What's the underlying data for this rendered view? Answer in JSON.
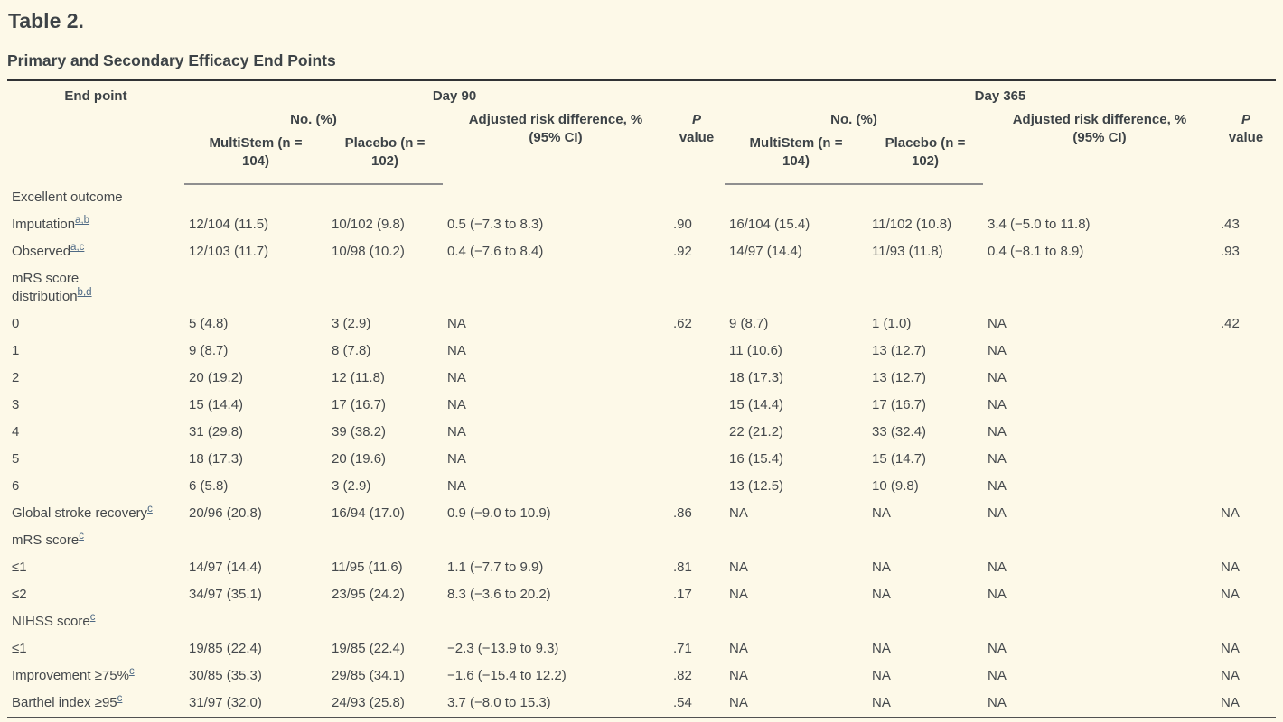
{
  "page": {
    "title": "Table 2.",
    "subtitle": "Primary and Secondary Efficacy End Points"
  },
  "colors": {
    "bg": "#fdf9e8",
    "text": "#45494c",
    "heading": "#3d4347",
    "link": "#4e6984",
    "border_top": "#313335",
    "border_header": "#8f8f8f",
    "border_bottom": "#515151"
  },
  "table": {
    "type": "table",
    "header": {
      "endpoint": "End point",
      "groups": [
        {
          "label": "Day 90"
        },
        {
          "label": "Day 365"
        }
      ],
      "no_pct": "No. (%)",
      "multistem_line1": "MultiStem (n =",
      "multistem_line2": "104)",
      "placebo_line1": "Placebo (n =",
      "placebo_line2": "102)",
      "ard_line1": "Adjusted risk difference, %",
      "ard_line2": "(95% CI)",
      "p_line1": "P",
      "p_line2": "value"
    },
    "rows": [
      {
        "label": "Excellent outcome",
        "sup": "",
        "cells": [
          "",
          "",
          "",
          "",
          "",
          "",
          "",
          ""
        ]
      },
      {
        "label": "Imputation",
        "sup": "a,b",
        "cells": [
          "12/104 (11.5)",
          "10/102 (9.8)",
          "0.5 (−7.3 to 8.3)",
          ".90",
          "16/104 (15.4)",
          "11/102 (10.8)",
          "3.4 (−5.0 to 11.8)",
          ".43"
        ]
      },
      {
        "label": "Observed",
        "sup": "a,c",
        "cells": [
          "12/103 (11.7)",
          "10/98 (10.2)",
          "0.4 (−7.6 to 8.4)",
          ".92",
          "14/97 (14.4)",
          "11/93 (11.8)",
          "0.4 (−8.1 to 8.9)",
          ".93"
        ]
      },
      {
        "label": "mRS score",
        "label2": "distribution",
        "sup": "b,d",
        "cells": [
          "",
          "",
          "",
          "",
          "",
          "",
          "",
          ""
        ]
      },
      {
        "label": "0",
        "sup": "",
        "cells": [
          "5 (4.8)",
          "3 (2.9)",
          "NA",
          ".62",
          "9 (8.7)",
          "1 (1.0)",
          "NA",
          ".42"
        ]
      },
      {
        "label": "1",
        "sup": "",
        "cells": [
          "9 (8.7)",
          "8 (7.8)",
          "NA",
          "",
          "11 (10.6)",
          "13 (12.7)",
          "NA",
          ""
        ]
      },
      {
        "label": "2",
        "sup": "",
        "cells": [
          "20 (19.2)",
          "12 (11.8)",
          "NA",
          "",
          "18 (17.3)",
          "13 (12.7)",
          "NA",
          ""
        ]
      },
      {
        "label": "3",
        "sup": "",
        "cells": [
          "15 (14.4)",
          "17 (16.7)",
          "NA",
          "",
          "15 (14.4)",
          "17 (16.7)",
          "NA",
          ""
        ]
      },
      {
        "label": "4",
        "sup": "",
        "cells": [
          "31 (29.8)",
          "39 (38.2)",
          "NA",
          "",
          "22 (21.2)",
          "33 (32.4)",
          "NA",
          ""
        ]
      },
      {
        "label": "5",
        "sup": "",
        "cells": [
          "18 (17.3)",
          "20 (19.6)",
          "NA",
          "",
          "16 (15.4)",
          "15 (14.7)",
          "NA",
          ""
        ]
      },
      {
        "label": "6",
        "sup": "",
        "cells": [
          "6 (5.8)",
          "3 (2.9)",
          "NA",
          "",
          "13 (12.5)",
          "10 (9.8)",
          "NA",
          ""
        ]
      },
      {
        "label": "Global stroke recovery",
        "sup": "c",
        "cells": [
          "20/96 (20.8)",
          "16/94 (17.0)",
          "0.9 (−9.0 to 10.9)",
          ".86",
          "NA",
          "NA",
          "NA",
          "NA"
        ]
      },
      {
        "label": "mRS score",
        "sup": "c",
        "cells": [
          "",
          "",
          "",
          "",
          "",
          "",
          "",
          ""
        ]
      },
      {
        "label": "≤1",
        "sup": "",
        "cells": [
          "14/97 (14.4)",
          "11/95 (11.6)",
          "1.1 (−7.7 to 9.9)",
          ".81",
          "NA",
          "NA",
          "NA",
          "NA"
        ]
      },
      {
        "label": "≤2",
        "sup": "",
        "cells": [
          "34/97 (35.1)",
          "23/95 (24.2)",
          "8.3 (−3.6 to 20.2)",
          ".17",
          "NA",
          "NA",
          "NA",
          "NA"
        ]
      },
      {
        "label": "NIHSS score",
        "sup": "c",
        "cells": [
          "",
          "",
          "",
          "",
          "",
          "",
          "",
          ""
        ]
      },
      {
        "label": "≤1",
        "sup": "",
        "cells": [
          "19/85 (22.4)",
          "19/85 (22.4)",
          "−2.3 (−13.9 to 9.3)",
          ".71",
          "NA",
          "NA",
          "NA",
          "NA"
        ]
      },
      {
        "label": "Improvement ≥75%",
        "sup": "c",
        "cells": [
          "30/85 (35.3)",
          "29/85 (34.1)",
          "−1.6 (−15.4 to 12.2)",
          ".82",
          "NA",
          "NA",
          "NA",
          "NA"
        ]
      },
      {
        "label": "Barthel index ≥95",
        "sup": "c",
        "cells": [
          "31/97 (32.0)",
          "24/93 (25.8)",
          "3.7 (−8.0 to 15.3)",
          ".54",
          "NA",
          "NA",
          "NA",
          "NA"
        ]
      }
    ]
  }
}
